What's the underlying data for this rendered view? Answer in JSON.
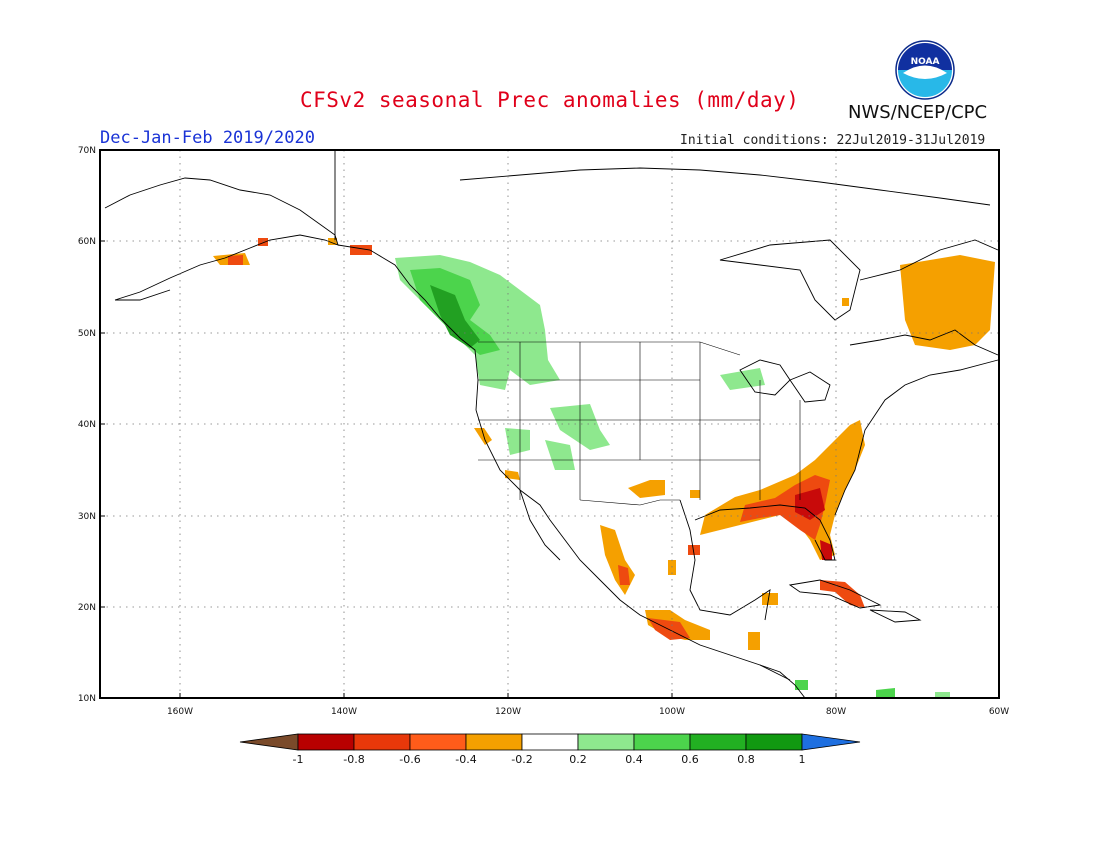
{
  "header": {
    "title": "CFSv2 seasonal Prec anomalies (mm/day)",
    "season": "Dec-Jan-Feb 2019/2020",
    "initial_conditions": "Initial conditions: 22Jul2019-31Jul2019",
    "agency": "NWS/NCEP/CPC",
    "logo_text": "NOAA"
  },
  "axes": {
    "lat_labels": [
      "70N",
      "60N",
      "50N",
      "40N",
      "30N",
      "20N",
      "10N"
    ],
    "lon_labels": [
      "160W",
      "140W",
      "120W",
      "100W",
      "80W",
      "60W"
    ]
  },
  "colorbar": {
    "labels": [
      "-1",
      "-0.8",
      "-0.6",
      "-0.4",
      "-0.2",
      "0.2",
      "0.4",
      "0.6",
      "0.8",
      "1"
    ],
    "colors": [
      "#7a4a2a",
      "#b80000",
      "#e8380a",
      "#ff5c1a",
      "#f5a000",
      "#ffffff",
      "#8ee88e",
      "#4cd44c",
      "#22b022",
      "#119911",
      "#1e6fe0"
    ]
  },
  "colors": {
    "dry_strong": "#c80a0a",
    "dry_mid": "#ee4a10",
    "dry_weak": "#f5a000",
    "wet_weak": "#8ee88e",
    "wet_mid": "#4cd44c",
    "wet_strong": "#22a022"
  }
}
